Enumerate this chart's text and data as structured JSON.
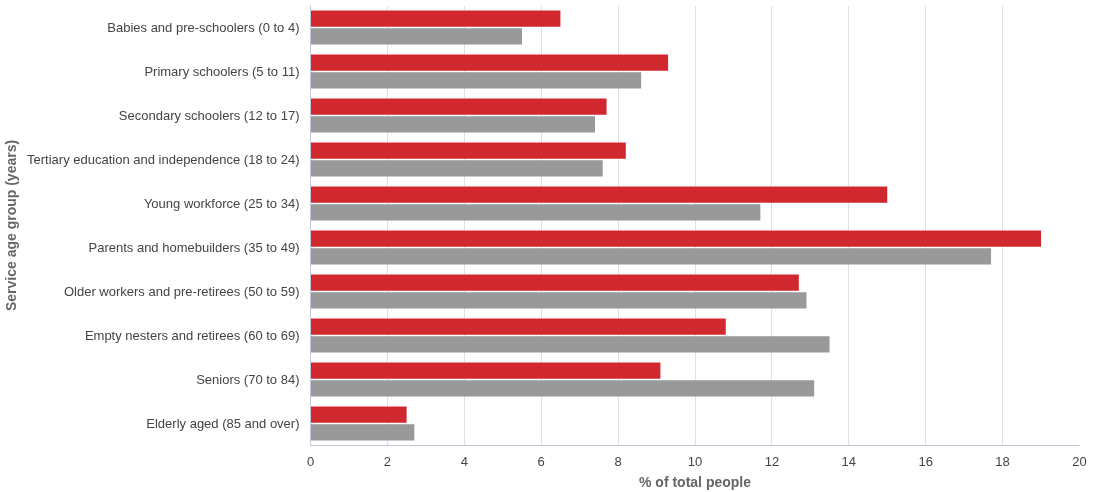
{
  "chart_data": {
    "type": "bar",
    "orientation": "horizontal",
    "xlabel": "% of total people",
    "ylabel": "Service age group (years)",
    "categories": [
      "Babies and pre-schoolers (0 to 4)",
      "Primary schoolers (5 to 11)",
      "Secondary schoolers (12 to 17)",
      "Tertiary education and independence (18 to 24)",
      "Young workforce (25 to 34)",
      "Parents and homebuilders (35 to 49)",
      "Older workers and pre-retirees (50 to 59)",
      "Empty nesters and retirees (60 to 69)",
      "Seniors (70 to 84)",
      "Elderly aged (85 and over)"
    ],
    "series": [
      {
        "color": "#d0282e",
        "values": [
          6.5,
          9.3,
          7.7,
          8.2,
          15.0,
          19.0,
          12.7,
          10.8,
          9.1,
          2.5
        ]
      },
      {
        "color": "#999999",
        "values": [
          5.5,
          8.6,
          7.4,
          7.6,
          11.7,
          17.7,
          12.9,
          13.5,
          13.1,
          2.7
        ]
      }
    ],
    "xlim": [
      0,
      20
    ],
    "xticks": [
      0,
      2,
      4,
      6,
      8,
      10,
      12,
      14,
      16,
      18,
      20
    ],
    "grid": "x"
  }
}
